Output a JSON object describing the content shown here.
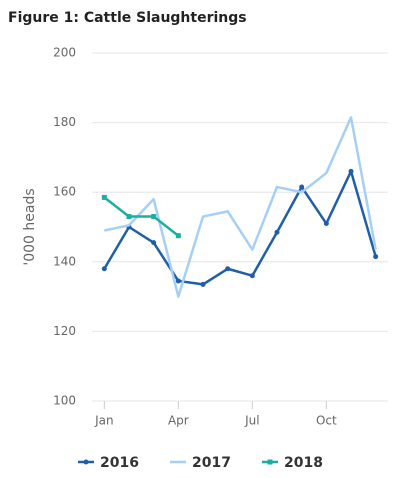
{
  "chart_data": {
    "type": "line",
    "title": "Figure 1: Cattle Slaughterings",
    "y_label": "'000 heads",
    "categories": [
      "Jan",
      null,
      null,
      "Apr",
      null,
      null,
      "Jul",
      null,
      null,
      "Oct",
      null,
      null
    ],
    "series": [
      {
        "name": "2016",
        "color": "#1f5ea8",
        "marker": "circle",
        "values": [
          138,
          150,
          145.5,
          134.5,
          133.5,
          138,
          136,
          148.5,
          161.5,
          151,
          166,
          141.5
        ]
      },
      {
        "name": "2017",
        "color": "#a6cff5",
        "marker": "none",
        "values": [
          149,
          150.5,
          158,
          130,
          153,
          154.5,
          143.5,
          161.5,
          160,
          165.5,
          181.5,
          143.5
        ]
      },
      {
        "name": "2018",
        "color": "#1aafa0",
        "marker": "square",
        "values": [
          158.5,
          153,
          153,
          147.5,
          null,
          null,
          null,
          null,
          null,
          null,
          null,
          null
        ]
      }
    ],
    "ylim": [
      100,
      200
    ],
    "yticks": [
      100,
      120,
      140,
      160,
      180,
      200
    ],
    "grid": true
  }
}
